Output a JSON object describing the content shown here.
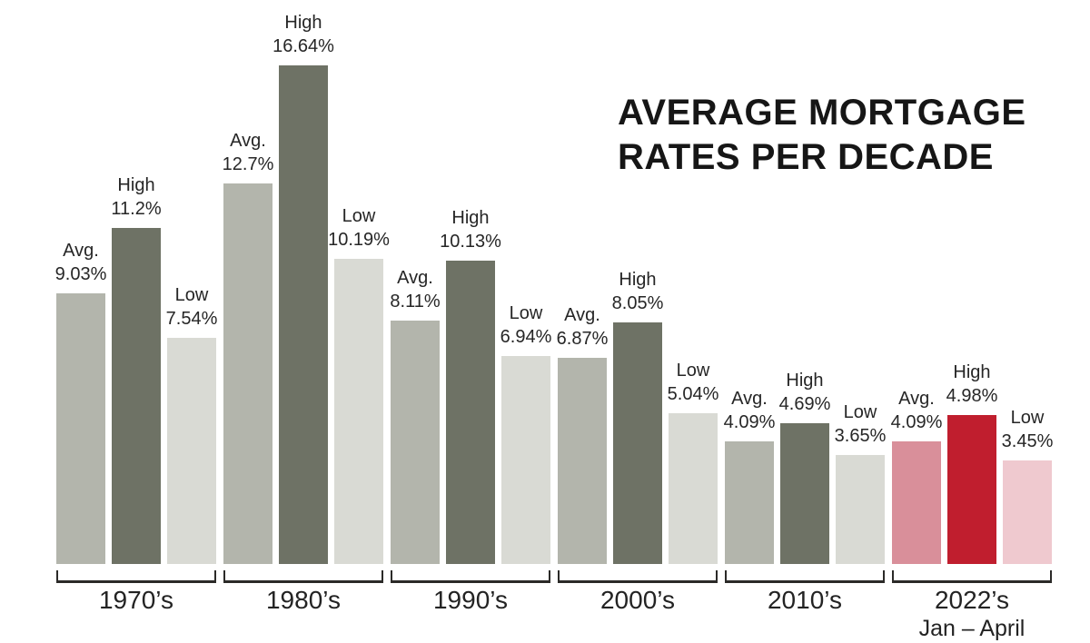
{
  "title": {
    "line1": "AVERAGE MORTGAGE",
    "line2": "RATES PER DECADE"
  },
  "chart_data": {
    "type": "bar",
    "title": "AVERAGE MORTGAGE RATES PER DECADE",
    "value_unit": "percent",
    "ylim": [
      0,
      17
    ],
    "legend": [
      "Avg.",
      "High",
      "Low"
    ],
    "grid": false,
    "palette": {
      "decade": {
        "avg": "#b3b5ac",
        "high": "#6e7265",
        "low": "#d9dad4"
      },
      "current": {
        "avg": "#d98f9a",
        "high": "#c01e2e",
        "low": "#efc9cf"
      }
    },
    "groups": [
      {
        "label": "1970’s",
        "sublabel": "",
        "palette": "decade",
        "bars": [
          {
            "kind": "Avg.",
            "key": "avg",
            "value": 9.03,
            "display": "9.03%"
          },
          {
            "kind": "High",
            "key": "high",
            "value": 11.2,
            "display": "11.2%"
          },
          {
            "kind": "Low",
            "key": "low",
            "value": 7.54,
            "display": "7.54%"
          }
        ]
      },
      {
        "label": "1980’s",
        "sublabel": "",
        "palette": "decade",
        "bars": [
          {
            "kind": "Avg.",
            "key": "avg",
            "value": 12.7,
            "display": "12.7%"
          },
          {
            "kind": "High",
            "key": "high",
            "value": 16.64,
            "display": "16.64%"
          },
          {
            "kind": "Low",
            "key": "low",
            "value": 10.19,
            "display": "10.19%"
          }
        ]
      },
      {
        "label": "1990’s",
        "sublabel": "",
        "palette": "decade",
        "bars": [
          {
            "kind": "Avg.",
            "key": "avg",
            "value": 8.11,
            "display": "8.11%"
          },
          {
            "kind": "High",
            "key": "high",
            "value": 10.13,
            "display": "10.13%"
          },
          {
            "kind": "Low",
            "key": "low",
            "value": 6.94,
            "display": "6.94%"
          }
        ]
      },
      {
        "label": "2000’s",
        "sublabel": "",
        "palette": "decade",
        "bars": [
          {
            "kind": "Avg.",
            "key": "avg",
            "value": 6.87,
            "display": "6.87%"
          },
          {
            "kind": "High",
            "key": "high",
            "value": 8.05,
            "display": "8.05%"
          },
          {
            "kind": "Low",
            "key": "low",
            "value": 5.04,
            "display": "5.04%"
          }
        ]
      },
      {
        "label": "2010’s",
        "sublabel": "",
        "palette": "decade",
        "bars": [
          {
            "kind": "Avg.",
            "key": "avg",
            "value": 4.09,
            "display": "4.09%"
          },
          {
            "kind": "High",
            "key": "high",
            "value": 4.69,
            "display": "4.69%"
          },
          {
            "kind": "Low",
            "key": "low",
            "value": 3.65,
            "display": "3.65%"
          }
        ]
      },
      {
        "label": "2022’s",
        "sublabel": "Jan – April",
        "palette": "current",
        "bars": [
          {
            "kind": "Avg.",
            "key": "avg",
            "value": 4.09,
            "display": "4.09%"
          },
          {
            "kind": "High",
            "key": "high",
            "value": 4.98,
            "display": "4.98%"
          },
          {
            "kind": "Low",
            "key": "low",
            "value": 3.45,
            "display": "3.45%"
          }
        ]
      }
    ]
  }
}
